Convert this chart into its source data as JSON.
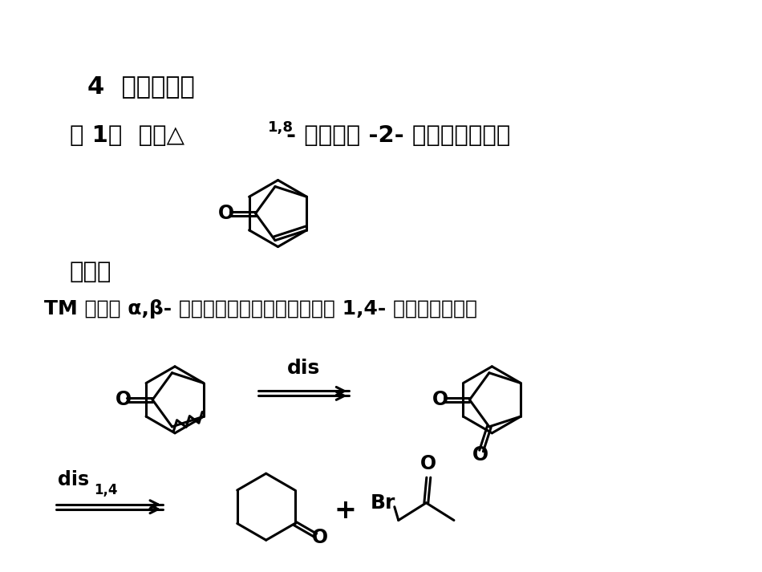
{
  "bg_color": "#ffffff",
  "text_color": "#000000",
  "figsize": [
    9.5,
    7.13
  ],
  "dpi": 100,
  "line1": "4  合成实例：",
  "line2a": "例 1：  设计△",
  "line2sup": "1,8",
  "line2b": "- 六氢化茴 -2- 酮的合成路线。",
  "line3": "分析：",
  "line4": "TM 为稠环 α,β- 不饱和罰基化合物，拆开后为 1,4- 二罰基化合物。",
  "dis_label": "dis",
  "dis14_label": "dis",
  "sub14": "1,4",
  "plus": "+"
}
